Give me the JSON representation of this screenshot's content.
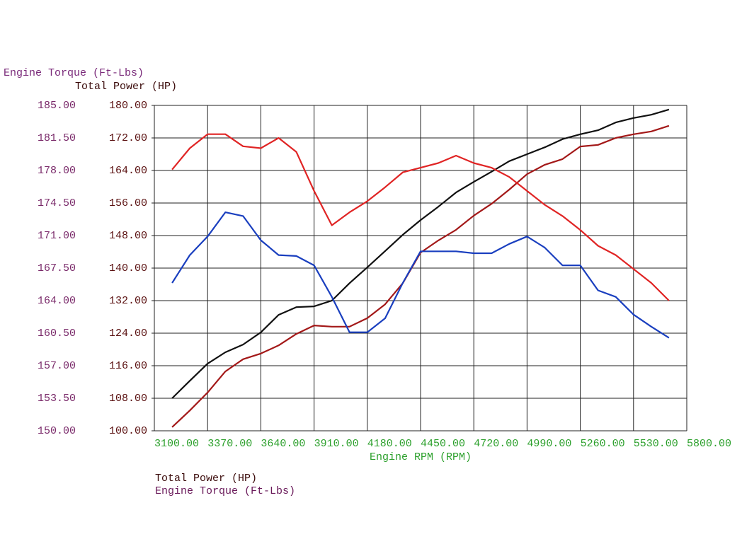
{
  "chart_data": {
    "type": "line",
    "y_title": "Engine Torque (Ft-Lbs)",
    "y2_title": "Total Power (HP)",
    "x_title": "Engine RPM (RPM)",
    "xlim": [
      3100,
      5800
    ],
    "xticks": [
      {
        "value": 3100,
        "label": "3100.00"
      },
      {
        "value": 3370,
        "label": "3370.00"
      },
      {
        "value": 3640,
        "label": "3640.00"
      },
      {
        "value": 3910,
        "label": "3910.00"
      },
      {
        "value": 4180,
        "label": "4180.00"
      },
      {
        "value": 4450,
        "label": "4450.00"
      },
      {
        "value": 4720,
        "label": "4720.00"
      },
      {
        "value": 4990,
        "label": "4990.00"
      },
      {
        "value": 5260,
        "label": "5260.00"
      },
      {
        "value": 5530,
        "label": "5530.00"
      },
      {
        "value": 5800,
        "label": "5800.00"
      }
    ],
    "ylim": [
      150,
      185
    ],
    "yticks": [
      {
        "value": 150,
        "label": "150.00"
      },
      {
        "value": 153.5,
        "label": "153.50"
      },
      {
        "value": 157,
        "label": "157.00"
      },
      {
        "value": 160.5,
        "label": "160.50"
      },
      {
        "value": 164,
        "label": "164.00"
      },
      {
        "value": 167.5,
        "label": "167.50"
      },
      {
        "value": 171,
        "label": "171.00"
      },
      {
        "value": 174.5,
        "label": "174.50"
      },
      {
        "value": 178,
        "label": "178.00"
      },
      {
        "value": 181.5,
        "label": "181.50"
      },
      {
        "value": 185,
        "label": "185.00"
      }
    ],
    "y2lim": [
      100,
      180
    ],
    "y2ticks": [
      {
        "value": 100,
        "label": "100.00"
      },
      {
        "value": 108,
        "label": "108.00"
      },
      {
        "value": 116,
        "label": "116.00"
      },
      {
        "value": 124,
        "label": "124.00"
      },
      {
        "value": 132,
        "label": "132.00"
      },
      {
        "value": 140,
        "label": "140.00"
      },
      {
        "value": 148,
        "label": "148.00"
      },
      {
        "value": 156,
        "label": "156.00"
      },
      {
        "value": 164,
        "label": "164.00"
      },
      {
        "value": 172,
        "label": "172.00"
      },
      {
        "value": 180,
        "label": "180.00"
      }
    ],
    "grid": true,
    "x": [
      3190,
      3280,
      3370,
      3460,
      3550,
      3640,
      3730,
      3820,
      3910,
      4000,
      4090,
      4180,
      4270,
      4360,
      4450,
      4540,
      4630,
      4720,
      4810,
      4900,
      4990,
      5080,
      5170,
      5260,
      5350,
      5440,
      5530,
      5620,
      5710
    ],
    "series": [
      {
        "color": "#111111",
        "axis": "y2",
        "values": [
          108.0,
          112.3,
          116.5,
          119.3,
          121.2,
          124.2,
          128.5,
          130.4,
          130.6,
          132.0,
          136.3,
          140.2,
          144.2,
          148.2,
          151.8,
          155.1,
          158.6,
          161.2,
          163.7,
          166.3,
          168.0,
          169.7,
          171.7,
          172.9,
          173.9,
          175.8,
          176.9,
          177.7,
          179.0
        ]
      },
      {
        "color": "#a31818",
        "axis": "y2",
        "values": [
          100.9,
          105.0,
          109.4,
          114.6,
          117.6,
          119.0,
          121.0,
          123.8,
          125.9,
          125.6,
          125.6,
          127.7,
          131.1,
          136.3,
          143.8,
          146.8,
          149.4,
          152.9,
          155.8,
          159.3,
          163.1,
          165.4,
          166.8,
          169.9,
          170.3,
          172.0,
          172.9,
          173.6,
          175.0
        ]
      },
      {
        "color": "#e02424",
        "axis": "y",
        "values": [
          178.1,
          180.4,
          181.9,
          181.9,
          180.6,
          180.4,
          181.5,
          180.0,
          175.8,
          172.1,
          173.5,
          174.7,
          176.2,
          177.8,
          178.3,
          178.8,
          179.6,
          178.8,
          178.3,
          177.3,
          175.8,
          174.3,
          173.1,
          171.6,
          169.9,
          168.9,
          167.4,
          165.9,
          164.0
        ]
      },
      {
        "color": "#1a3fbf",
        "axis": "y",
        "values": [
          165.9,
          168.9,
          170.9,
          173.5,
          173.1,
          170.5,
          168.9,
          168.8,
          167.8,
          164.4,
          160.6,
          160.6,
          162.1,
          165.9,
          169.3,
          169.3,
          169.3,
          169.1,
          169.1,
          170.1,
          170.9,
          169.7,
          167.8,
          167.8,
          165.1,
          164.4,
          162.5,
          161.2,
          160.0
        ]
      }
    ],
    "legend": [
      {
        "label": "Total Power (HP)",
        "color": "#3a0a0a"
      },
      {
        "label": "Engine Torque (Ft-Lbs)",
        "color": "#6a1a5a"
      }
    ]
  }
}
